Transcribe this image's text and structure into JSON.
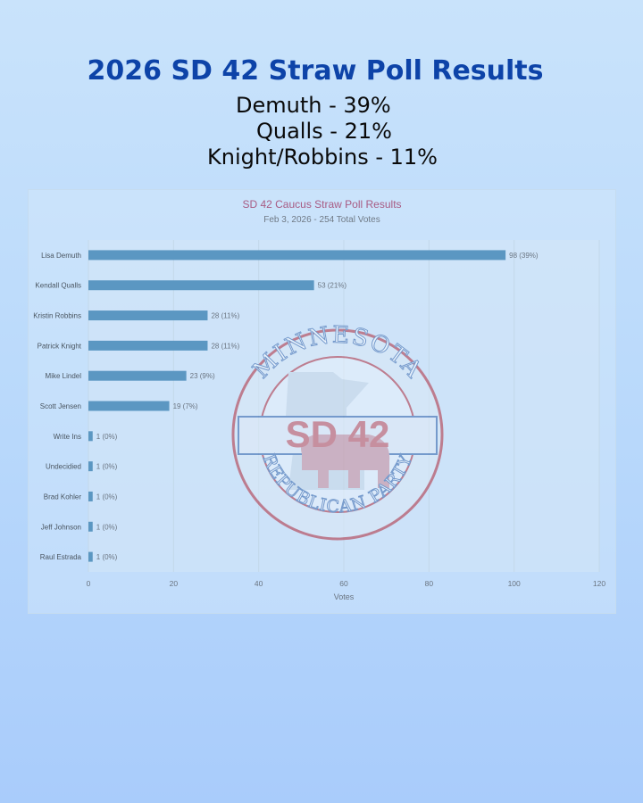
{
  "headline": "2026 SD 42 Straw Poll Results",
  "summary": [
    "Demuth - 39%",
    "Qualls - 21%",
    "Knight/Robbins - 11%"
  ],
  "logo": {
    "top_arc": "MINNESOTA",
    "center": "SD 42",
    "bottom_arc": "REPUBLICAN PARTY",
    "colors": {
      "ring": "#b02a3a",
      "text": "#c24b57",
      "band": "#2e5fa8"
    }
  },
  "chart_data": {
    "type": "bar",
    "orientation": "horizontal",
    "title": "SD 42 Caucus Straw Poll Results",
    "subtitle": "Feb 3, 2026 - 254 Total Votes",
    "xlabel": "Votes",
    "ylabel": "",
    "xlim": [
      0,
      120
    ],
    "xticks": [
      0,
      20,
      40,
      60,
      80,
      100,
      120
    ],
    "grid": true,
    "bar_color": "#5b97c2",
    "categories": [
      "Lisa Demuth",
      "Kendall Qualls",
      "Kristin Robbins",
      "Patrick Knight",
      "Mike Lindel",
      "Scott Jensen",
      "Write Ins",
      "Undecidied",
      "Brad Kohler",
      "Jeff Johnson",
      "Raul Estrada"
    ],
    "values": [
      98,
      53,
      28,
      28,
      23,
      19,
      1,
      1,
      1,
      1,
      1
    ],
    "data_labels": [
      "98 (39%)",
      "53 (21%)",
      "28 (11%)",
      "28 (11%)",
      "23 (9%)",
      "19 (7%)",
      "1 (0%)",
      "1 (0%)",
      "1 (0%)",
      "1 (0%)",
      "1 (0%)"
    ]
  }
}
